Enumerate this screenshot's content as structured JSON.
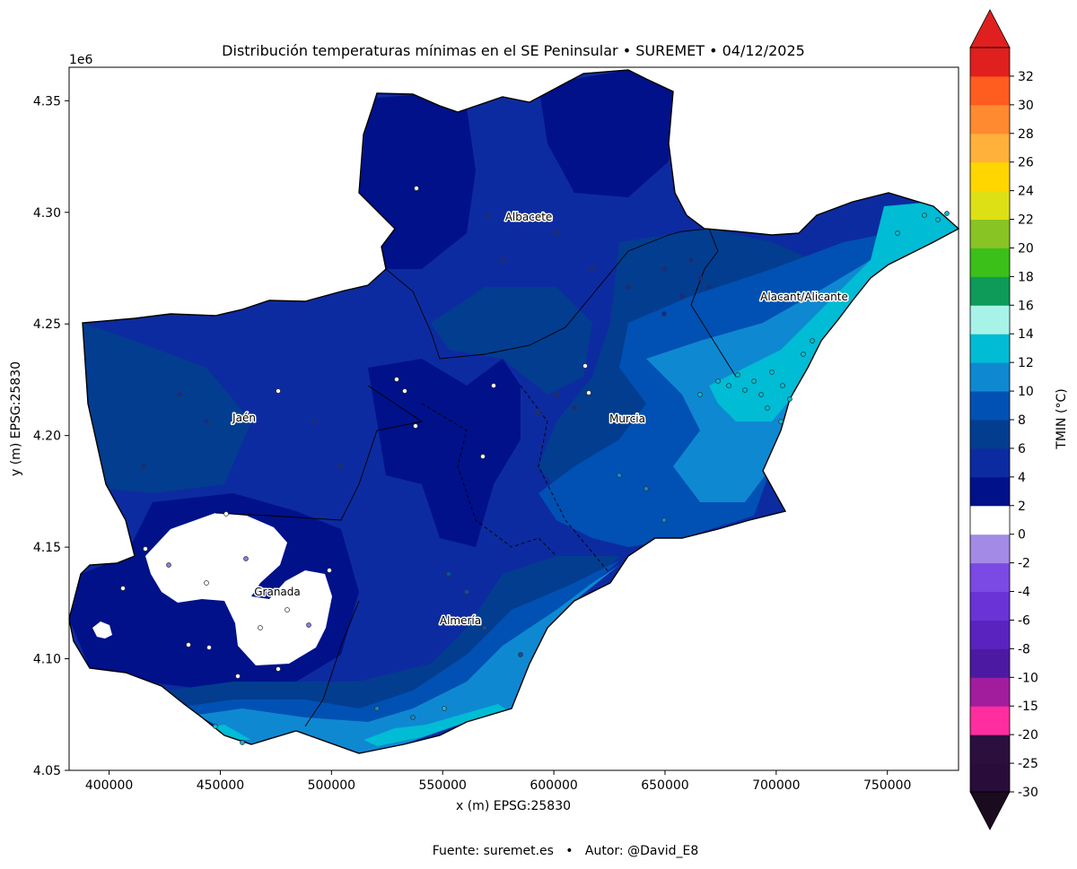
{
  "title": "Distribución temperaturas mínimas en el SE Peninsular • SUREMET • 04/12/2025",
  "footer": "Fuente: suremet.es   •   Autor: @David_E8",
  "map": {
    "type": "contour-map",
    "xlabel": "x (m) EPSG:25830",
    "ylabel": "y (m) EPSG:25830",
    "y_offset_label": "1e6",
    "xlim": [
      382000,
      782000
    ],
    "ylim": [
      4.05,
      4.365
    ],
    "x_ticks": [
      400000,
      450000,
      500000,
      550000,
      600000,
      650000,
      700000,
      750000
    ],
    "x_tick_labels": [
      "400000",
      "450000",
      "500000",
      "550000",
      "600000",
      "650000",
      "700000",
      "750000"
    ],
    "y_ticks": [
      4.05,
      4.1,
      4.15,
      4.2,
      4.25,
      4.3,
      4.35
    ],
    "y_tick_labels": [
      "4.05",
      "4.10",
      "4.15",
      "4.20",
      "4.25",
      "4.30",
      "4.35"
    ],
    "cities": [
      {
        "name": "Albacete",
        "x": 588000,
        "y": 4.298
      },
      {
        "name": "Jaén",
        "x": 460000,
        "y": 4.207
      },
      {
        "name": "Murcia",
        "x": 633000,
        "y": 4.207
      },
      {
        "name": "Alacant/Alicante",
        "x": 712000,
        "y": 4.262
      },
      {
        "name": "Granada",
        "x": 475000,
        "y": 4.13
      },
      {
        "name": "Almería",
        "x": 559000,
        "y": 4.117
      }
    ]
  },
  "colorbar": {
    "label": "TMIN (°C)",
    "extend": "both",
    "ticks": [
      "-30",
      "-25",
      "-20",
      "-15",
      "-10",
      "-8",
      "-6",
      "-4",
      "-2",
      "0",
      "2",
      "4",
      "6",
      "8",
      "10",
      "12",
      "14",
      "16",
      "18",
      "20",
      "22",
      "24",
      "26",
      "28",
      "30",
      "32"
    ],
    "colors": [
      "#2a0c3a",
      "#2b0f3f",
      "#ff2d9f",
      "#a21c9e",
      "#4c1aa2",
      "#5a23c0",
      "#6a33d6",
      "#7b49e3",
      "#a38ae6",
      "#ffffff",
      "#00118a",
      "#0d2ba0",
      "#033d8f",
      "#0051b3",
      "#0f88d2",
      "#00bcd4",
      "#a8f3e8",
      "#0e9a59",
      "#3ac019",
      "#88c424",
      "#dde014",
      "#ffd600",
      "#ffb13b",
      "#ff8a30",
      "#ff5c20",
      "#e0201e"
    ],
    "under_color": "#1a0b1f",
    "over_color": "#e0201e"
  }
}
